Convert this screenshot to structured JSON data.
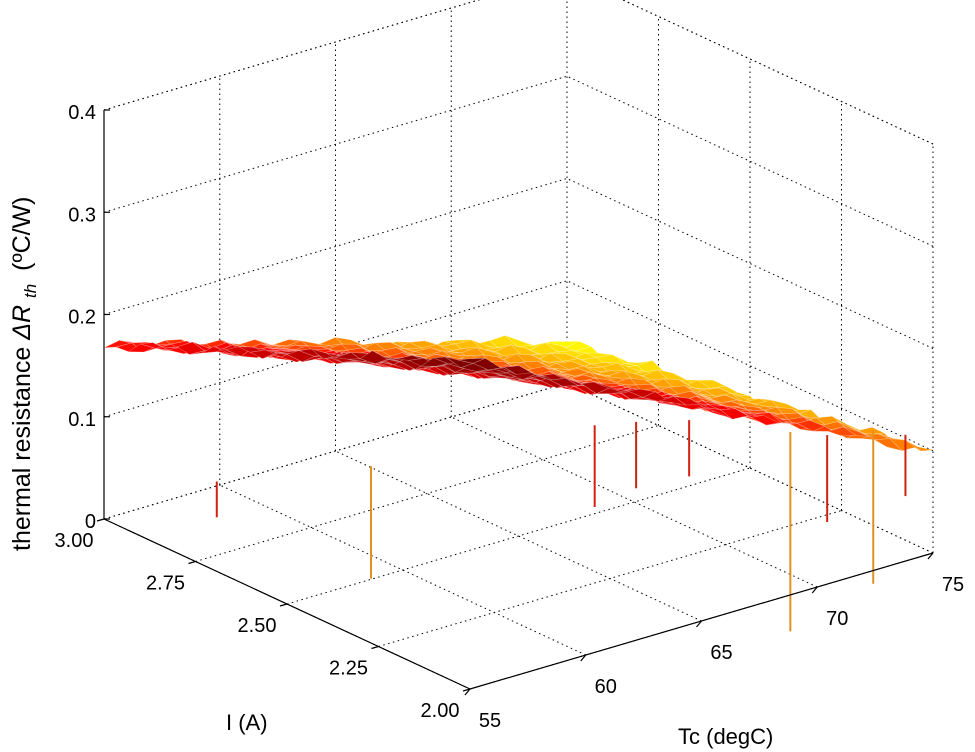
{
  "chart_data": {
    "type": "surface",
    "title": "",
    "xlabel": "Tc (degC)",
    "ylabel": "I (A)",
    "zlabel": "thermal resistance",
    "zlabel_symbol": "ΔR",
    "zlabel_subscript": "th",
    "zlabel_unit": "(ºC/W)",
    "x_ticks": [
      "55",
      "60",
      "65",
      "70",
      "75"
    ],
    "y_ticks": [
      "2.00",
      "2.25",
      "2.50",
      "2.75",
      "3.00"
    ],
    "z_ticks": [
      "0",
      "0.1",
      "0.2",
      "0.3",
      "0.4"
    ],
    "xlim": [
      55,
      75
    ],
    "ylim": [
      2.0,
      3.0
    ],
    "zlim": [
      0,
      0.4
    ],
    "grid": true,
    "colormap": "hot (yellow = low, dark red = high)",
    "surface_corners": [
      {
        "tc": 55,
        "i": 3.0,
        "rth": 0.17
      },
      {
        "tc": 55,
        "i": 2.0,
        "rth": 0.32
      },
      {
        "tc": 75,
        "i": 2.0,
        "rth": 0.1
      },
      {
        "tc": 75,
        "i": 3.0,
        "rth": 0.04
      }
    ],
    "spikes": [
      {
        "tc": 57.5,
        "i": 2.85,
        "top": 0.045,
        "bottom": 0.01
      },
      {
        "tc": 61.0,
        "i": 2.65,
        "top": 0.07,
        "bottom": -0.04
      },
      {
        "tc": 67.5,
        "i": 2.45,
        "top": 0.1,
        "bottom": 0.02
      },
      {
        "tc": 68.5,
        "i": 2.4,
        "top": 0.105,
        "bottom": 0.04
      },
      {
        "tc": 70.0,
        "i": 2.35,
        "top": 0.105,
        "bottom": 0.05
      },
      {
        "tc": 72.0,
        "i": 2.2,
        "top": 0.105,
        "bottom": -0.09
      },
      {
        "tc": 72.8,
        "i": 2.15,
        "top": 0.105,
        "bottom": 0.02
      },
      {
        "tc": 74.0,
        "i": 2.1,
        "top": 0.11,
        "bottom": -0.04
      },
      {
        "tc": 74.6,
        "i": 2.05,
        "top": 0.11,
        "bottom": 0.05
      }
    ]
  }
}
